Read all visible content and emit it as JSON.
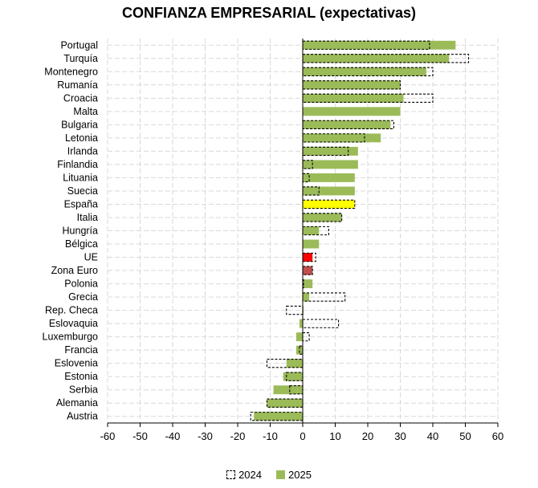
{
  "chart_data": {
    "type": "bar",
    "orientation": "horizontal",
    "title": "CONFIANZA EMPRESARIAL (expectativas)",
    "xlim": [
      -60,
      60
    ],
    "xticks": [
      -60,
      -50,
      -40,
      -30,
      -20,
      -10,
      0,
      10,
      20,
      30,
      40,
      50,
      60
    ],
    "grid": true,
    "legend_position": "bottom",
    "categories": [
      "Portugal",
      "Turquía",
      "Montenegro",
      "Rumanía",
      "Croacia",
      "Malta",
      "Bulgaria",
      "Letonia",
      "Irlanda",
      "Finlandia",
      "Lituania",
      "Suecia",
      "España",
      "Italia",
      "Hungría",
      "Bélgica",
      "UE",
      "Zona Euro",
      "Polonia",
      "Grecia",
      "Rep. Checa",
      "Eslovaquia",
      "Luxemburgo",
      "Francia",
      "Eslovenia",
      "Estonia",
      "Serbia",
      "Alemania",
      "Austria"
    ],
    "series": [
      {
        "name": "2024",
        "style": "dashed-outline",
        "values": [
          39,
          51,
          40,
          30,
          40,
          null,
          28,
          19,
          14,
          3,
          2,
          5,
          16,
          12,
          8,
          null,
          4,
          3,
          0,
          13,
          -5,
          11,
          2,
          -1,
          -11,
          -5,
          -4,
          -11,
          -16
        ]
      },
      {
        "name": "2025",
        "style": "filled",
        "values": [
          47,
          45,
          38,
          30,
          31,
          30,
          27,
          24,
          17,
          17,
          16,
          16,
          16,
          12,
          5,
          5,
          3,
          3,
          3,
          2,
          0,
          -1,
          -2,
          -2,
          -5,
          -6,
          -9,
          -11,
          -15
        ]
      }
    ],
    "colors": {
      "2025": "#9bbb59",
      "highlight_espana": "#ffff00",
      "highlight_ue": "#ff0000",
      "highlight_zona_euro": "#c0504d",
      "grid": "#d9d9d9"
    },
    "highlights": {
      "España": "#ffff00",
      "UE": "#ff0000",
      "Zona Euro": "#c0504d"
    }
  }
}
